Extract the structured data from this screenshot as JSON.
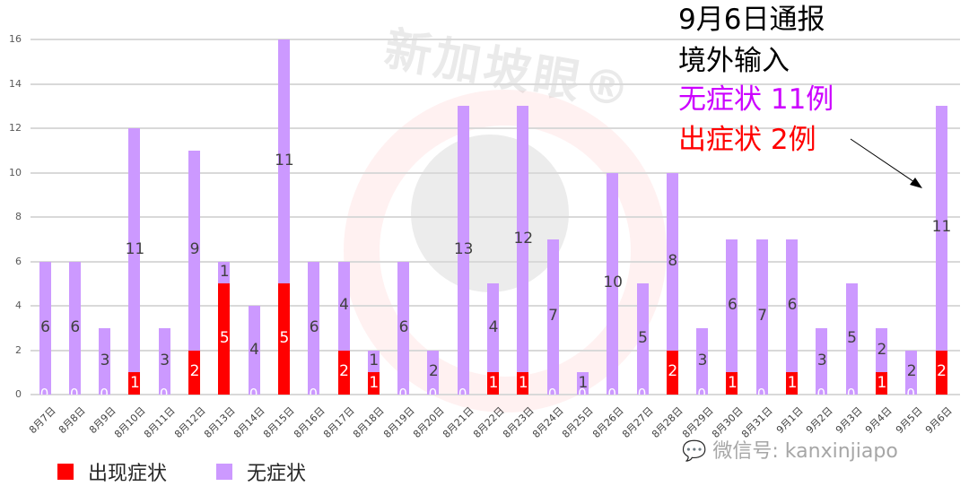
{
  "chart_data": {
    "type": "bar",
    "stacked": true,
    "title": "",
    "xlabel": "",
    "ylabel": "",
    "ylim": [
      0,
      16
    ],
    "yticks": [
      0,
      2,
      4,
      6,
      8,
      10,
      12,
      14,
      16
    ],
    "grid": true,
    "legend_position": "bottom-left",
    "categories": [
      "8月7日",
      "8月8日",
      "8月9日",
      "8月10日",
      "8月11日",
      "8月12日",
      "8月13日",
      "8月14日",
      "8月15日",
      "8月16日",
      "8月17日",
      "8月18日",
      "8月19日",
      "8月20日",
      "8月21日",
      "8月22日",
      "8月23日",
      "8月24日",
      "8月25日",
      "8月26日",
      "8月27日",
      "8月28日",
      "8月29日",
      "8月30日",
      "8月31日",
      "9月1日",
      "9月2日",
      "9月3日",
      "9月4日",
      "9月5日",
      "9月6日"
    ],
    "series": [
      {
        "name": "出现症状",
        "color": "#ff0000",
        "values": [
          0,
          0,
          0,
          1,
          0,
          2,
          5,
          0,
          5,
          0,
          2,
          1,
          0,
          0,
          0,
          1,
          1,
          0,
          0,
          0,
          0,
          2,
          0,
          1,
          0,
          1,
          0,
          0,
          1,
          0,
          2
        ]
      },
      {
        "name": "无症状",
        "color": "#cc99ff",
        "values": [
          6,
          6,
          3,
          11,
          3,
          9,
          1,
          4,
          11,
          6,
          4,
          1,
          6,
          2,
          13,
          4,
          12,
          7,
          1,
          10,
          5,
          8,
          3,
          6,
          7,
          6,
          3,
          5,
          2,
          2,
          11
        ]
      }
    ],
    "annotations": [
      {
        "text": "9月6日通报",
        "color": "#000000"
      },
      {
        "text": "境外输入",
        "color": "#000000"
      },
      {
        "text": "无症状 11例",
        "color": "#cc00ff"
      },
      {
        "text": "出症状 2例",
        "color": "#ff0000"
      }
    ]
  },
  "annotation": {
    "line1": "9月6日通报",
    "line2": "境外输入",
    "line3": "无症状 11例",
    "line4": "出症状 2例"
  },
  "legend": {
    "symptomatic": "出现症状",
    "asymptomatic": "无症状"
  },
  "watermark": {
    "brand": "新加坡眼®",
    "wechat": "微信号: kanxinjiapo"
  },
  "colors": {
    "symptomatic": "#ff0000",
    "asymptomatic": "#cc99ff",
    "annotation_purple": "#cc00ff",
    "annotation_red": "#ff0000"
  }
}
